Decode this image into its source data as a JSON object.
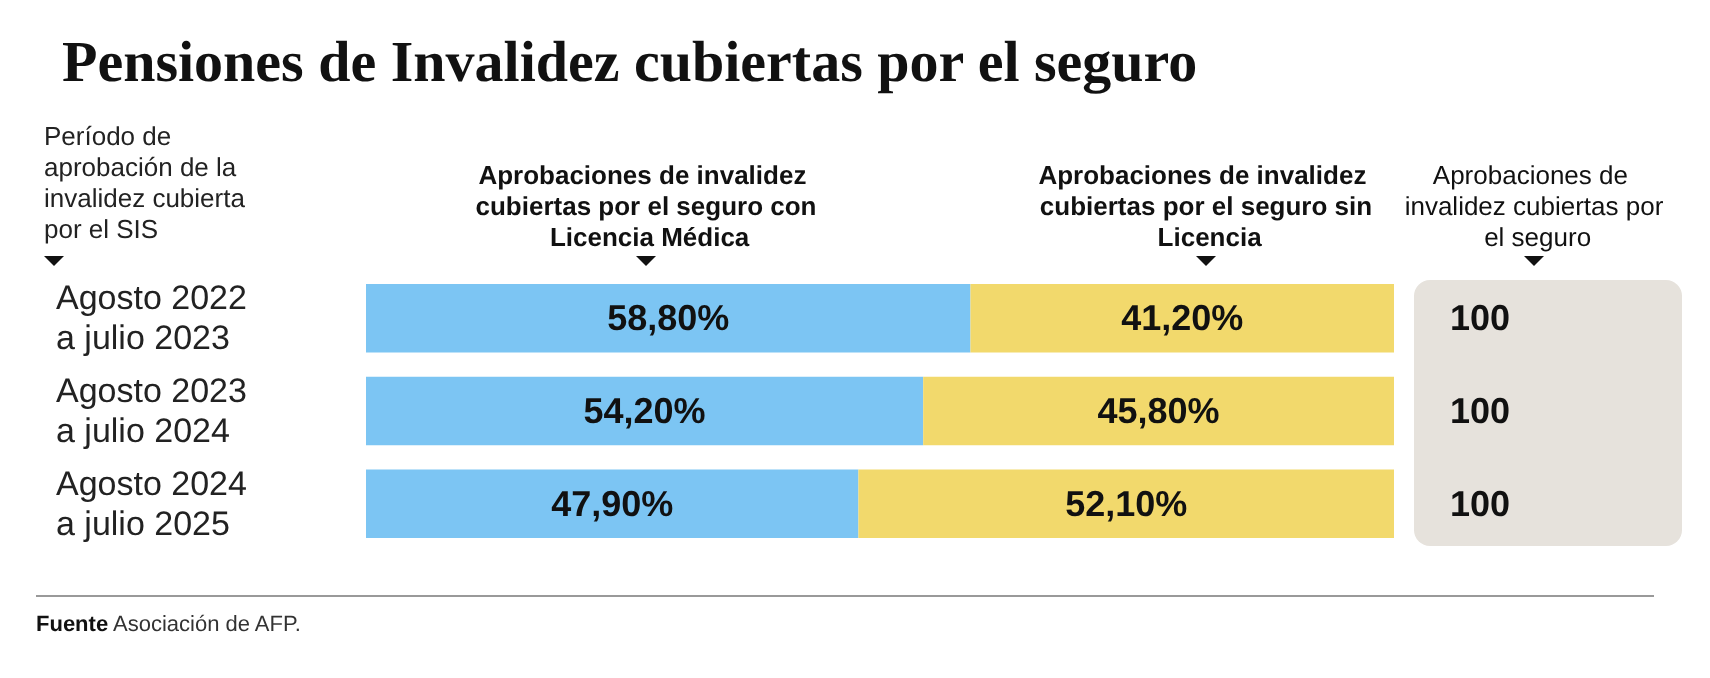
{
  "chart_data": {
    "type": "bar",
    "orientation": "horizontal",
    "stacked": true,
    "title": "Pensiones de Invalidez cubiertas por el seguro",
    "ylabel": "Período de aprobación de la invalidez cubierta por el SIS",
    "categories": [
      "Agosto 2022 a julio 2023",
      "Agosto 2023 a julio 2024",
      "Agosto 2024 a julio 2025"
    ],
    "series": [
      {
        "name": "Aprobaciones de invalidez cubiertas por el seguro con Licencia Médica",
        "color": "#7cc5f3",
        "values": [
          58.8,
          54.2,
          47.9
        ],
        "value_labels": [
          "58,80%",
          "54,20%",
          "47,90%"
        ]
      },
      {
        "name": "Aprobaciones de invalidez cubiertas por el seguro sin Licencia",
        "color": "#f2d96c",
        "values": [
          41.2,
          45.8,
          52.1
        ],
        "value_labels": [
          "41,20%",
          "45,80%",
          "52,10%"
        ]
      }
    ],
    "totals": [
      "100",
      "100",
      "100"
    ],
    "annotations": [
      "Aprobaciones de invalidez cubiertas por el seguro",
      "Fuente Asociación de AFP."
    ],
    "legend": false
  }
}
